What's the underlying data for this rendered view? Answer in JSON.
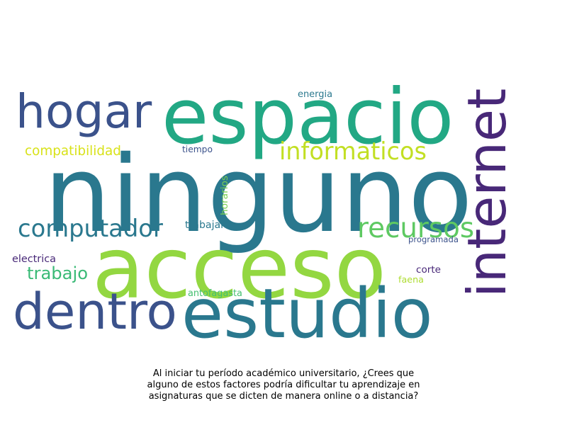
{
  "colors": {
    "background": "#ffffff",
    "caption": "#000000",
    "palette": "viridis"
  },
  "words": [
    {
      "text": "ninguno",
      "color": "#2a788e",
      "orientation": "horizontal"
    },
    {
      "text": "espacio",
      "color": "#22a884",
      "orientation": "horizontal"
    },
    {
      "text": "acceso",
      "color": "#93d741",
      "orientation": "horizontal"
    },
    {
      "text": "estudio",
      "color": "#2a788e",
      "orientation": "horizontal"
    },
    {
      "text": "hogar",
      "color": "#3b528b",
      "orientation": "horizontal"
    },
    {
      "text": "dentro",
      "color": "#3b528b",
      "orientation": "horizontal"
    },
    {
      "text": "internet",
      "color": "#482878",
      "orientation": "vertical"
    },
    {
      "text": "computador",
      "color": "#2a788e",
      "orientation": "horizontal"
    },
    {
      "text": "recursos",
      "color": "#5ec962",
      "orientation": "horizontal"
    },
    {
      "text": "informaticos",
      "color": "#c2df23",
      "orientation": "horizontal"
    },
    {
      "text": "trabajo",
      "color": "#3aba76",
      "orientation": "horizontal"
    },
    {
      "text": "compatibilidad",
      "color": "#d8e219",
      "orientation": "horizontal"
    },
    {
      "text": "energia",
      "color": "#2a788e",
      "orientation": "horizontal"
    },
    {
      "text": "tiempo",
      "color": "#3b528b",
      "orientation": "horizontal"
    },
    {
      "text": "horarios",
      "color": "#7ad151",
      "orientation": "vertical"
    },
    {
      "text": "trabajar",
      "color": "#2a788e",
      "orientation": "horizontal"
    },
    {
      "text": "programada",
      "color": "#3b528b",
      "orientation": "horizontal"
    },
    {
      "text": "electrica",
      "color": "#482878",
      "orientation": "horizontal"
    },
    {
      "text": "corte",
      "color": "#482878",
      "orientation": "horizontal"
    },
    {
      "text": "faena",
      "color": "#addc30",
      "orientation": "horizontal"
    },
    {
      "text": "antofagasta",
      "color": "#44bf70",
      "orientation": "horizontal"
    }
  ],
  "caption": {
    "line1": "Al iniciar tu período académico universitario, ¿Crees que",
    "line2": "alguno de estos factores podría dificultar tu aprendizaje en",
    "line3": "asignaturas que se dicten de manera online o a distancia?"
  }
}
